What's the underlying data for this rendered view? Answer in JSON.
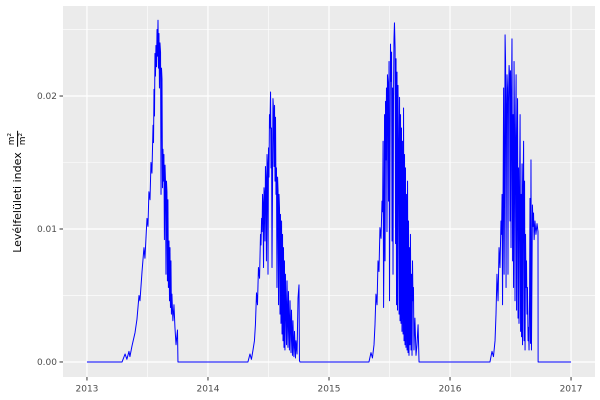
{
  "theme": {
    "background": "#FFFFFF",
    "panel_bg": "#EBEBEB",
    "grid_color": "#FFFFFF",
    "tick_color": "#333333",
    "tick_label_color": "#4D4D4D",
    "axis_title_color": "#000000"
  },
  "y_axis": {
    "title": "Levélfelületi index",
    "unit_fraction": {
      "numerator": "m²",
      "denominator": "m²"
    }
  },
  "chart_data": {
    "type": "line",
    "title": "",
    "xlabel": "",
    "ylabel": "Levélfelületi index m²/m²",
    "series_name": "Levélfelületi index",
    "line_color": "#0000FF",
    "grid": true,
    "legend": "none",
    "xlim": [
      2012.802,
      2017.198
    ],
    "ylim": [
      -0.00113,
      0.02677
    ],
    "x_major_breaks": [
      2013,
      2014,
      2015,
      2016,
      2017
    ],
    "x_major_labels": [
      "2013",
      "2014",
      "2015",
      "2016",
      "2017"
    ],
    "x_minor_breaks": [
      2013.5,
      2014.5,
      2015.5,
      2016.5
    ],
    "y_major_breaks": [
      0,
      0.01,
      0.02
    ],
    "y_major_labels": [
      "0.00",
      "0.01",
      "0.02"
    ],
    "y_minor_breaks": [
      0.005,
      0.015,
      0.025
    ],
    "points": [
      [
        2013.0,
        0
      ],
      [
        2013.29,
        0
      ],
      [
        2013.315,
        0.0006
      ],
      [
        2013.33,
        0.0002
      ],
      [
        2013.347,
        0.0008
      ],
      [
        2013.355,
        0.0004
      ],
      [
        2013.372,
        0.0012
      ],
      [
        2013.397,
        0.0022
      ],
      [
        2013.413,
        0.0032
      ],
      [
        2013.43,
        0.005
      ],
      [
        2013.438,
        0.0046
      ],
      [
        2013.455,
        0.0068
      ],
      [
        2013.471,
        0.0086
      ],
      [
        2013.479,
        0.0078
      ],
      [
        2013.496,
        0.0108
      ],
      [
        2013.504,
        0.0102
      ],
      [
        2013.512,
        0.0128
      ],
      [
        2013.521,
        0.0122
      ],
      [
        2013.529,
        0.015
      ],
      [
        2013.537,
        0.0142
      ],
      [
        2013.546,
        0.0178
      ],
      [
        2013.55,
        0.0165
      ],
      [
        2013.554,
        0.0205
      ],
      [
        2013.558,
        0.0185
      ],
      [
        2013.562,
        0.0232
      ],
      [
        2013.566,
        0.0215
      ],
      [
        2013.57,
        0.0238
      ],
      [
        2013.575,
        0.0222
      ],
      [
        2013.579,
        0.025
      ],
      [
        2013.583,
        0.023
      ],
      [
        2013.587,
        0.0257
      ],
      [
        2013.591,
        0.0221
      ],
      [
        2013.595,
        0.0247
      ],
      [
        2013.599,
        0.0206
      ],
      [
        2013.603,
        0.024
      ],
      [
        2013.608,
        0.0233
      ],
      [
        2013.612,
        0.0126
      ],
      [
        2013.616,
        0.0221
      ],
      [
        2013.62,
        0.0213
      ],
      [
        2013.624,
        0.0131
      ],
      [
        2013.628,
        0.016
      ],
      [
        2013.632,
        0.0136
      ],
      [
        2013.636,
        0.0156
      ],
      [
        2013.64,
        0.0092
      ],
      [
        2013.645,
        0.0148
      ],
      [
        2013.649,
        0.0136
      ],
      [
        2013.653,
        0.0066
      ],
      [
        2013.657,
        0.0136
      ],
      [
        2013.661,
        0.0128
      ],
      [
        2013.665,
        0.0061
      ],
      [
        2013.669,
        0.0122
      ],
      [
        2013.673,
        0.0056
      ],
      [
        2013.678,
        0.0091
      ],
      [
        2013.682,
        0.0046
      ],
      [
        2013.686,
        0.0086
      ],
      [
        2013.69,
        0.0041
      ],
      [
        2013.694,
        0.0076
      ],
      [
        2013.698,
        0.0036
      ],
      [
        2013.702,
        0.0051
      ],
      [
        2013.71,
        0.0031
      ],
      [
        2013.719,
        0.0043
      ],
      [
        2013.727,
        0.0026
      ],
      [
        2013.736,
        0.0013
      ],
      [
        2013.748,
        0.0024
      ],
      [
        2013.752,
        0
      ],
      [
        2014.33,
        0
      ],
      [
        2014.347,
        0.0006
      ],
      [
        2014.359,
        0.0002
      ],
      [
        2014.372,
        0.0009
      ],
      [
        2014.384,
        0.0016
      ],
      [
        2014.392,
        0.0028
      ],
      [
        2014.401,
        0.0052
      ],
      [
        2014.409,
        0.0043
      ],
      [
        2014.417,
        0.0071
      ],
      [
        2014.426,
        0.0063
      ],
      [
        2014.434,
        0.0096
      ],
      [
        2014.438,
        0.0088
      ],
      [
        2014.443,
        0.0108
      ],
      [
        2014.447,
        0.0098
      ],
      [
        2014.451,
        0.0126
      ],
      [
        2014.455,
        0.0118
      ],
      [
        2014.459,
        0.0071
      ],
      [
        2014.463,
        0.0131
      ],
      [
        2014.467,
        0.0126
      ],
      [
        2014.471,
        0.0091
      ],
      [
        2014.475,
        0.0147
      ],
      [
        2014.479,
        0.0138
      ],
      [
        2014.483,
        0.0076
      ],
      [
        2014.488,
        0.0156
      ],
      [
        2014.492,
        0.0148
      ],
      [
        2014.496,
        0.0066
      ],
      [
        2014.5,
        0.0161
      ],
      [
        2014.504,
        0.0139
      ],
      [
        2014.508,
        0.0186
      ],
      [
        2014.512,
        0.0176
      ],
      [
        2014.517,
        0.0203
      ],
      [
        2014.521,
        0.0146
      ],
      [
        2014.525,
        0.0176
      ],
      [
        2014.529,
        0.0071
      ],
      [
        2014.533,
        0.0126
      ],
      [
        2014.537,
        0.0198
      ],
      [
        2014.541,
        0.0191
      ],
      [
        2014.546,
        0.0147
      ],
      [
        2014.55,
        0.0193
      ],
      [
        2014.554,
        0.0136
      ],
      [
        2014.558,
        0.0184
      ],
      [
        2014.562,
        0.0126
      ],
      [
        2014.566,
        0.0146
      ],
      [
        2014.57,
        0.0056
      ],
      [
        2014.575,
        0.0139
      ],
      [
        2014.579,
        0.0129
      ],
      [
        2014.583,
        0.0043
      ],
      [
        2014.587,
        0.0126
      ],
      [
        2014.591,
        0.0116
      ],
      [
        2014.595,
        0.0036
      ],
      [
        2014.599,
        0.0111
      ],
      [
        2014.603,
        0.0029
      ],
      [
        2014.608,
        0.0106
      ],
      [
        2014.612,
        0.0021
      ],
      [
        2014.616,
        0.0096
      ],
      [
        2014.62,
        0.0016
      ],
      [
        2014.624,
        0.0086
      ],
      [
        2014.628,
        0.0011
      ],
      [
        2014.632,
        0.0076
      ],
      [
        2014.636,
        0.0009
      ],
      [
        2014.64,
        0.0066
      ],
      [
        2014.649,
        0.0013
      ],
      [
        2014.653,
        0.0061
      ],
      [
        2014.661,
        0.0011
      ],
      [
        2014.665,
        0.0053
      ],
      [
        2014.673,
        0.0009
      ],
      [
        2014.678,
        0.0046
      ],
      [
        2014.686,
        0.0007
      ],
      [
        2014.69,
        0.0039
      ],
      [
        2014.698,
        0.0005
      ],
      [
        2014.702,
        0.0031
      ],
      [
        2014.71,
        0.0004
      ],
      [
        2014.715,
        0.0023
      ],
      [
        2014.723,
        0.0003
      ],
      [
        2014.727,
        0.0016
      ],
      [
        2014.736,
        0.0006
      ],
      [
        2014.744,
        0.0048
      ],
      [
        2014.752,
        0.0058
      ],
      [
        2014.756,
        0.0001
      ],
      [
        2014.76,
        0
      ],
      [
        2015.33,
        0
      ],
      [
        2015.347,
        0.0007
      ],
      [
        2015.359,
        0.0003
      ],
      [
        2015.372,
        0.0013
      ],
      [
        2015.38,
        0.0028
      ],
      [
        2015.388,
        0.0051
      ],
      [
        2015.397,
        0.0043
      ],
      [
        2015.405,
        0.0076
      ],
      [
        2015.413,
        0.0068
      ],
      [
        2015.421,
        0.0101
      ],
      [
        2015.43,
        0.0093
      ],
      [
        2015.438,
        0.0121
      ],
      [
        2015.443,
        0.0113
      ],
      [
        2015.447,
        0.0166
      ],
      [
        2015.451,
        0.0041
      ],
      [
        2015.455,
        0.0091
      ],
      [
        2015.459,
        0.0186
      ],
      [
        2015.463,
        0.0076
      ],
      [
        2015.467,
        0.0196
      ],
      [
        2015.471,
        0.0152
      ],
      [
        2015.475,
        0.0206
      ],
      [
        2015.479,
        0.0098
      ],
      [
        2015.483,
        0.0216
      ],
      [
        2015.488,
        0.0209
      ],
      [
        2015.492,
        0.0121
      ],
      [
        2015.496,
        0.0226
      ],
      [
        2015.5,
        0.0046
      ],
      [
        2015.504,
        0.0156
      ],
      [
        2015.508,
        0.0239
      ],
      [
        2015.512,
        0.0211
      ],
      [
        2015.517,
        0.0233
      ],
      [
        2015.521,
        0.0091
      ],
      [
        2015.525,
        0.0206
      ],
      [
        2015.529,
        0.0066
      ],
      [
        2015.533,
        0.0196
      ],
      [
        2015.537,
        0.0243
      ],
      [
        2015.541,
        0.0255
      ],
      [
        2015.546,
        0.0236
      ],
      [
        2015.55,
        0.0089
      ],
      [
        2015.554,
        0.0228
      ],
      [
        2015.558,
        0.0043
      ],
      [
        2015.562,
        0.0218
      ],
      [
        2015.566,
        0.0039
      ],
      [
        2015.57,
        0.0208
      ],
      [
        2015.575,
        0.0156
      ],
      [
        2015.579,
        0.0036
      ],
      [
        2015.583,
        0.0199
      ],
      [
        2015.587,
        0.0031
      ],
      [
        2015.591,
        0.0186
      ],
      [
        2015.595,
        0.0029
      ],
      [
        2015.599,
        0.0176
      ],
      [
        2015.603,
        0.0023
      ],
      [
        2015.608,
        0.0166
      ],
      [
        2015.612,
        0.0021
      ],
      [
        2015.616,
        0.0191
      ],
      [
        2015.62,
        0.0016
      ],
      [
        2015.624,
        0.0156
      ],
      [
        2015.628,
        0.0013
      ],
      [
        2015.632,
        0.0146
      ],
      [
        2015.636,
        0.0011
      ],
      [
        2015.64,
        0.0126
      ],
      [
        2015.645,
        0.0009
      ],
      [
        2015.649,
        0.0136
      ],
      [
        2015.653,
        0.0007
      ],
      [
        2015.657,
        0.0106
      ],
      [
        2015.661,
        0.0005
      ],
      [
        2015.665,
        0.0086
      ],
      [
        2015.669,
        0.0013
      ],
      [
        2015.673,
        0.0096
      ],
      [
        2015.678,
        0.0009
      ],
      [
        2015.682,
        0.0066
      ],
      [
        2015.686,
        0.0005
      ],
      [
        2015.69,
        0.0076
      ],
      [
        2015.694,
        0.0046
      ],
      [
        2015.698,
        0.0056
      ],
      [
        2015.702,
        0.0009
      ],
      [
        2015.71,
        0.0033
      ],
      [
        2015.719,
        0.0005
      ],
      [
        2015.727,
        0.0013
      ],
      [
        2015.736,
        0.0028
      ],
      [
        2015.744,
        0
      ],
      [
        2016.33,
        0
      ],
      [
        2016.347,
        0.0008
      ],
      [
        2016.359,
        0.0004
      ],
      [
        2016.372,
        0.0016
      ],
      [
        2016.38,
        0.0036
      ],
      [
        2016.388,
        0.0066
      ],
      [
        2016.397,
        0.0046
      ],
      [
        2016.405,
        0.0086
      ],
      [
        2016.413,
        0.0071
      ],
      [
        2016.421,
        0.0106
      ],
      [
        2016.426,
        0.0096
      ],
      [
        2016.43,
        0.0126
      ],
      [
        2016.434,
        0.0043
      ],
      [
        2016.438,
        0.0116
      ],
      [
        2016.443,
        0.0206
      ],
      [
        2016.447,
        0.0066
      ],
      [
        2016.451,
        0.0131
      ],
      [
        2016.455,
        0.0246
      ],
      [
        2016.459,
        0.0226
      ],
      [
        2016.463,
        0.0056
      ],
      [
        2016.467,
        0.0186
      ],
      [
        2016.471,
        0.0216
      ],
      [
        2016.475,
        0.0206
      ],
      [
        2016.479,
        0.0066
      ],
      [
        2016.483,
        0.0196
      ],
      [
        2016.488,
        0.0223
      ],
      [
        2016.492,
        0.0216
      ],
      [
        2016.496,
        0.0106
      ],
      [
        2016.5,
        0.0219
      ],
      [
        2016.504,
        0.0086
      ],
      [
        2016.508,
        0.0196
      ],
      [
        2016.512,
        0.0243
      ],
      [
        2016.517,
        0.0076
      ],
      [
        2016.521,
        0.0186
      ],
      [
        2016.525,
        0.0056
      ],
      [
        2016.529,
        0.0226
      ],
      [
        2016.533,
        0.0176
      ],
      [
        2016.537,
        0.0046
      ],
      [
        2016.541,
        0.0163
      ],
      [
        2016.546,
        0.0216
      ],
      [
        2016.55,
        0.0039
      ],
      [
        2016.554,
        0.0156
      ],
      [
        2016.558,
        0.0198
      ],
      [
        2016.562,
        0.0033
      ],
      [
        2016.566,
        0.0146
      ],
      [
        2016.57,
        0.0029
      ],
      [
        2016.575,
        0.0136
      ],
      [
        2016.579,
        0.0186
      ],
      [
        2016.583,
        0.0023
      ],
      [
        2016.587,
        0.0126
      ],
      [
        2016.591,
        0.0019
      ],
      [
        2016.595,
        0.0149
      ],
      [
        2016.599,
        0.0013
      ],
      [
        2016.603,
        0.0126
      ],
      [
        2016.608,
        0.0166
      ],
      [
        2016.612,
        0.0016
      ],
      [
        2016.616,
        0.0136
      ],
      [
        2016.62,
        0.0009
      ],
      [
        2016.624,
        0.0096
      ],
      [
        2016.628,
        0.0056
      ],
      [
        2016.632,
        0.0076
      ],
      [
        2016.636,
        0.0036
      ],
      [
        2016.64,
        0.0056
      ],
      [
        2016.645,
        0.0016
      ],
      [
        2016.649,
        0.0026
      ],
      [
        2016.653,
        0.0009
      ],
      [
        2016.657,
        0.0046
      ],
      [
        2016.661,
        0.0123
      ],
      [
        2016.665,
        0.0014
      ],
      [
        2016.669,
        0.0152
      ],
      [
        2016.673,
        0.0009
      ],
      [
        2016.681,
        0.0118
      ],
      [
        2016.686,
        0.0102
      ],
      [
        2016.69,
        0.0112
      ],
      [
        2016.695,
        0.0092
      ],
      [
        2016.702,
        0.0106
      ],
      [
        2016.71,
        0.0096
      ],
      [
        2016.719,
        0.0104
      ],
      [
        2016.727,
        0.0098
      ],
      [
        2016.728,
        0
      ],
      [
        2017.0,
        0
      ]
    ]
  }
}
